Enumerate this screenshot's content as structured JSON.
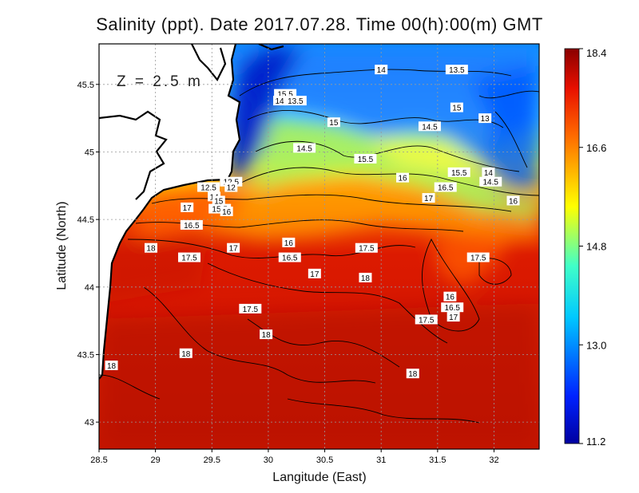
{
  "title": "Salinity (ppt). Date 2017.07.28. Time 00(h):00(m) GMT",
  "depth_label": "Z = 2.5 m",
  "chart_data": {
    "type": "heatmap",
    "variable": "Salinity (ppt)",
    "xlabel": "Langitude (East)",
    "ylabel": "Latitude (North)",
    "xlim": [
      28.5,
      32.4
    ],
    "ylim": [
      42.8,
      45.8
    ],
    "xticks": [
      28.5,
      29,
      29.5,
      30,
      30.5,
      31,
      31.5,
      32
    ],
    "xtick_labels": [
      "28.5",
      "29",
      "29.5",
      "30",
      "30.5",
      "31",
      "31.5",
      "32"
    ],
    "yticks": [
      43,
      43.5,
      44,
      44.5,
      45,
      45.5
    ],
    "ytick_labels": [
      "43",
      "43.5",
      "44",
      "44.5",
      "45",
      "45.5"
    ],
    "grid": true,
    "colorbar": {
      "min": 11.2,
      "max": 18.4,
      "ticks": [
        18.4,
        16.6,
        14.8,
        13.0,
        11.2
      ],
      "tick_labels": [
        "18.4",
        "16.6",
        "14.8",
        "13.0",
        "11.2"
      ]
    },
    "contour_labels": [
      {
        "text": "14",
        "lon": 31.0,
        "lat": 45.61
      },
      {
        "text": "13.5",
        "lon": 31.67,
        "lat": 45.61
      },
      {
        "text": "15.5",
        "lon": 30.15,
        "lat": 45.43
      },
      {
        "text": "14",
        "lon": 30.1,
        "lat": 45.38
      },
      {
        "text": "13.5",
        "lon": 30.24,
        "lat": 45.38
      },
      {
        "text": "15",
        "lon": 31.67,
        "lat": 45.33
      },
      {
        "text": "15",
        "lon": 30.58,
        "lat": 45.22
      },
      {
        "text": "13",
        "lon": 31.92,
        "lat": 45.25
      },
      {
        "text": "14.5",
        "lon": 31.43,
        "lat": 45.19
      },
      {
        "text": "14.5",
        "lon": 30.32,
        "lat": 45.03
      },
      {
        "text": "15.5",
        "lon": 30.86,
        "lat": 44.95
      },
      {
        "text": "15.5",
        "lon": 31.69,
        "lat": 44.85
      },
      {
        "text": "14",
        "lon": 31.95,
        "lat": 44.85
      },
      {
        "text": "16",
        "lon": 31.19,
        "lat": 44.81
      },
      {
        "text": "12.5",
        "lon": 29.67,
        "lat": 44.78
      },
      {
        "text": "12.5",
        "lon": 29.47,
        "lat": 44.74
      },
      {
        "text": "12",
        "lon": 29.67,
        "lat": 44.74
      },
      {
        "text": "14.5",
        "lon": 31.97,
        "lat": 44.78
      },
      {
        "text": "16.5",
        "lon": 31.57,
        "lat": 44.74
      },
      {
        "text": "14",
        "lon": 29.52,
        "lat": 44.67
      },
      {
        "text": "15",
        "lon": 29.56,
        "lat": 44.64
      },
      {
        "text": "17",
        "lon": 31.42,
        "lat": 44.66
      },
      {
        "text": "16",
        "lon": 32.17,
        "lat": 44.64
      },
      {
        "text": "17",
        "lon": 29.28,
        "lat": 44.59
      },
      {
        "text": "15.5",
        "lon": 29.57,
        "lat": 44.58
      },
      {
        "text": "16",
        "lon": 29.63,
        "lat": 44.56
      },
      {
        "text": "16.5",
        "lon": 29.32,
        "lat": 44.46
      },
      {
        "text": "16",
        "lon": 30.18,
        "lat": 44.33
      },
      {
        "text": "18",
        "lon": 28.96,
        "lat": 44.29
      },
      {
        "text": "17",
        "lon": 29.69,
        "lat": 44.29
      },
      {
        "text": "17.5",
        "lon": 30.87,
        "lat": 44.29
      },
      {
        "text": "17.5",
        "lon": 29.3,
        "lat": 44.22
      },
      {
        "text": "16.5",
        "lon": 30.19,
        "lat": 44.22
      },
      {
        "text": "17.5",
        "lon": 31.86,
        "lat": 44.22
      },
      {
        "text": "17",
        "lon": 30.41,
        "lat": 44.1
      },
      {
        "text": "18",
        "lon": 30.86,
        "lat": 44.07
      },
      {
        "text": "16",
        "lon": 31.61,
        "lat": 43.93
      },
      {
        "text": "17.5",
        "lon": 29.84,
        "lat": 43.84
      },
      {
        "text": "16.5",
        "lon": 31.63,
        "lat": 43.85
      },
      {
        "text": "17",
        "lon": 31.64,
        "lat": 43.78
      },
      {
        "text": "17.5",
        "lon": 31.4,
        "lat": 43.76
      },
      {
        "text": "18",
        "lon": 29.98,
        "lat": 43.65
      },
      {
        "text": "18",
        "lon": 29.27,
        "lat": 43.51
      },
      {
        "text": "18",
        "lon": 28.61,
        "lat": 43.42
      },
      {
        "text": "18",
        "lon": 31.28,
        "lat": 43.36
      }
    ]
  }
}
